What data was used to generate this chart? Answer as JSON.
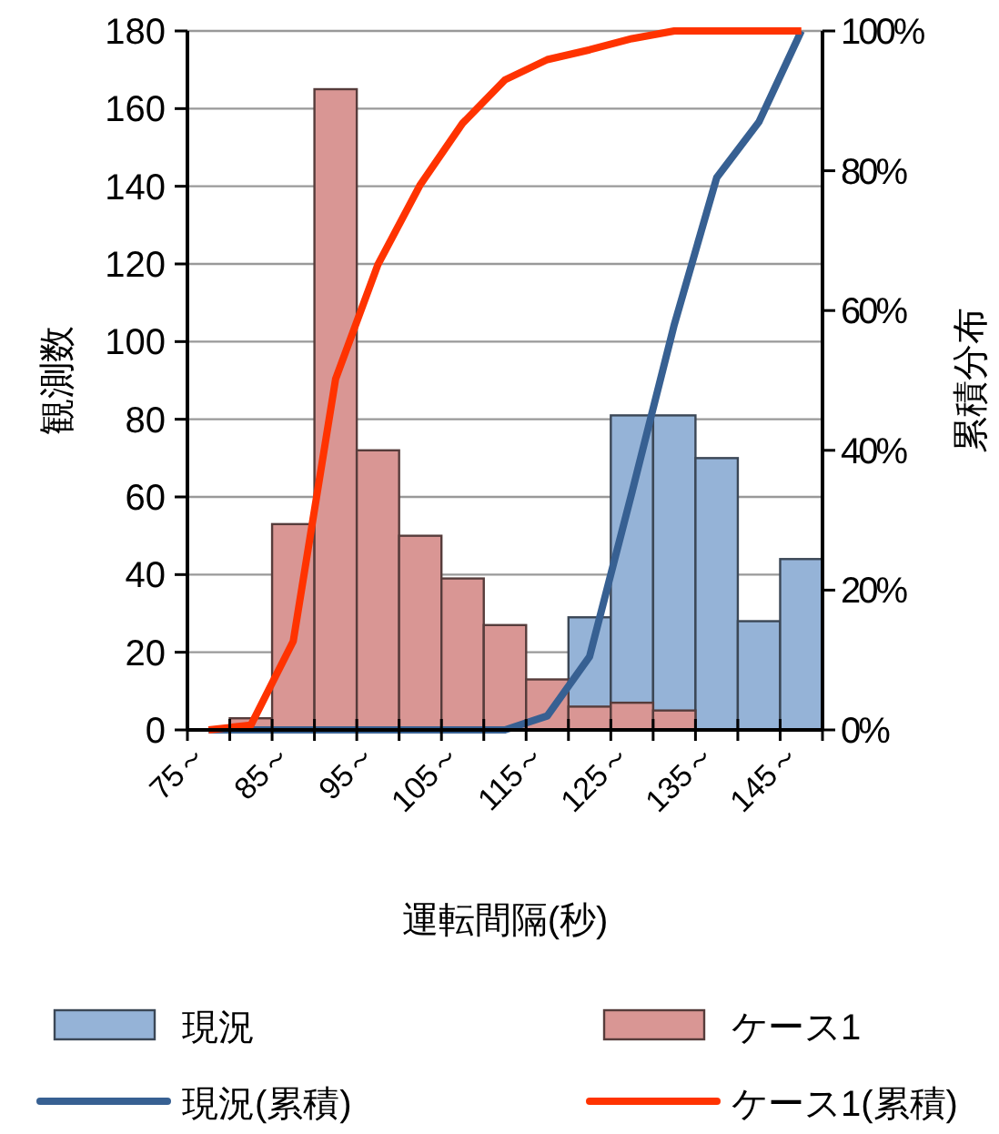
{
  "chart_data": {
    "type": "bar",
    "xlabel": "運転間隔(秒)",
    "ylabel": "観測数",
    "y2label": "累積分布",
    "categories": [
      "75～",
      null,
      "85～",
      null,
      "95～",
      null,
      "105～",
      null,
      "115～",
      null,
      "125～",
      null,
      "135～",
      null,
      "145～"
    ],
    "series": [
      {
        "name": "現況",
        "color": "#95b3d7",
        "values": [
          0,
          0,
          0,
          0,
          0,
          0,
          0,
          0,
          null,
          29,
          81,
          81,
          70,
          28,
          44
        ]
      },
      {
        "name": "ケース1",
        "color": "#d99694",
        "values": [
          0,
          3,
          53,
          165,
          72,
          50,
          39,
          27,
          13,
          6,
          7,
          5,
          0,
          0,
          0
        ]
      },
      {
        "name": "現況(累積)",
        "type": "line",
        "axis": "y2",
        "color": "#376092",
        "values": [
          0,
          0,
          0,
          0,
          0,
          0,
          0,
          0,
          2,
          10.5,
          34,
          58,
          79,
          87,
          100
        ]
      },
      {
        "name": "ケース1(累積)",
        "type": "line",
        "axis": "y2",
        "color": "#ff3300",
        "values": [
          0,
          0.7,
          12.7,
          50.2,
          66.6,
          78,
          86.8,
          93,
          95.9,
          97.3,
          98.9,
          100,
          100,
          100,
          100
        ]
      }
    ],
    "ylim": [
      0,
      180
    ],
    "yticks": [
      0,
      20,
      40,
      60,
      80,
      100,
      120,
      140,
      160,
      180
    ],
    "y2lim": [
      0,
      100
    ],
    "y2ticks": [
      {
        "value": 0,
        "label": "0%"
      },
      {
        "value": 20,
        "label": "20%"
      },
      {
        "value": 40,
        "label": "40%"
      },
      {
        "value": 60,
        "label": "60%"
      },
      {
        "value": 80,
        "label": "80%"
      },
      {
        "value": 100,
        "label": "100%"
      }
    ],
    "grid": "y",
    "legend": "bottom",
    "marker": "none",
    "line_style": "solid"
  }
}
